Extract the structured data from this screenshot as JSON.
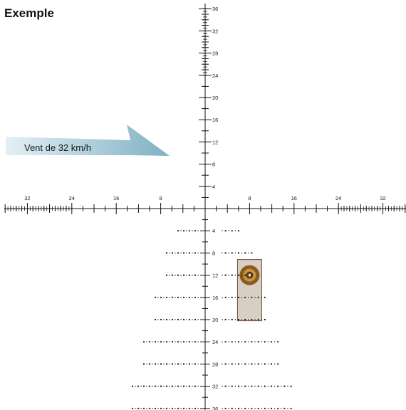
{
  "title": "Exemple",
  "wind": {
    "label": "Vent de 32 km/h",
    "color_light": "#e4f0f5",
    "color_dark": "#7fb0c4"
  },
  "reticle": {
    "horizontal_labels_left": [
      "32",
      "24",
      "16",
      "8"
    ],
    "horizontal_labels_right": [
      "8",
      "16",
      "24",
      "32"
    ],
    "upper_labels": [
      "4",
      "8",
      "12",
      "16",
      "20",
      "24",
      "28",
      "32",
      "36"
    ],
    "lower_labels": [
      "4",
      "8",
      "12",
      "16",
      "20",
      "24",
      "28",
      "32",
      "36"
    ],
    "line_color": "#111111",
    "dot_rows": [
      {
        "label": "4",
        "left_dots": 8,
        "right_dots": 6
      },
      {
        "label": "8",
        "left_dots": 12,
        "right_dots": 10
      },
      {
        "label": "12",
        "left_dots": 12,
        "right_dots": 10
      },
      {
        "label": "16",
        "left_dots": 16,
        "right_dots": 14
      },
      {
        "label": "20",
        "left_dots": 16,
        "right_dots": 14
      },
      {
        "label": "24",
        "left_dots": 20,
        "right_dots": 18
      },
      {
        "label": "28",
        "left_dots": 20,
        "right_dots": 18
      },
      {
        "label": "32",
        "left_dots": 24,
        "right_dots": 22
      },
      {
        "label": "36",
        "left_dots": 24,
        "right_dots": 22
      }
    ]
  },
  "target": {
    "box_color": "#d8cfc3",
    "box_border": "#6b4a3a",
    "ring_outer": "#8a5a1e",
    "ring_mid": "#c9943f",
    "ring_inner": "#5a3a14",
    "holdover_row": "12",
    "windage_value": "8"
  }
}
